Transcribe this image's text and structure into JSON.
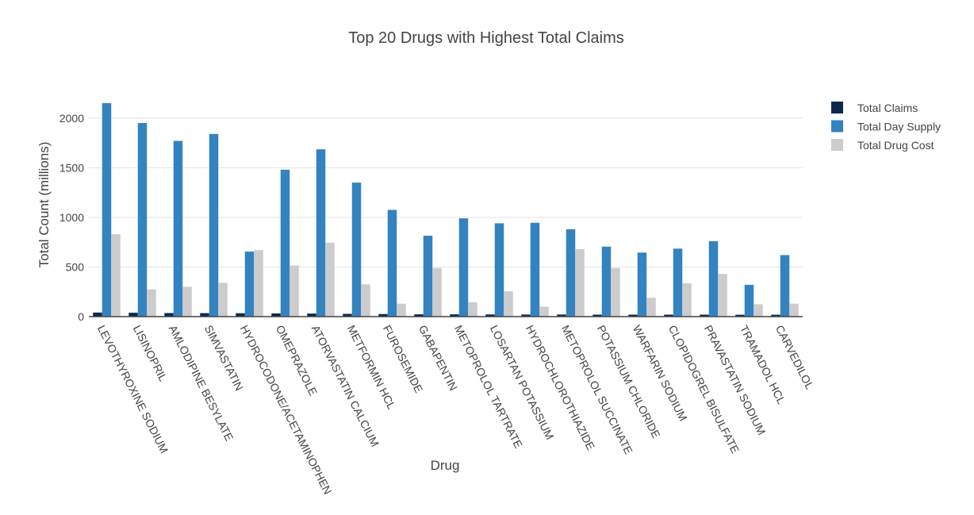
{
  "chart_data": {
    "type": "bar",
    "title": "Top 20 Drugs with Highest Total Claims",
    "xlabel": "Drug",
    "ylabel": "Total Count (millions)",
    "ylim": [
      0,
      2150
    ],
    "yticks": [
      0,
      500,
      1000,
      1500,
      2000
    ],
    "grid": true,
    "legend_position": "top-right",
    "categories": [
      "LEVOTHYROXINE SODIUM",
      "LISINOPRIL",
      "AMLODIPINE BESYLATE",
      "SIMVASTATIN",
      "HYDROCODONE/ACETAMINOPHEN",
      "OMEPRAZOLE",
      "ATORVASTATIN CALCIUM",
      "METFORMIN HCL",
      "FUROSEMIDE",
      "GABAPENTIN",
      "METOPROLOL TARTRATE",
      "LOSARTAN POTASSIUM",
      "HYDROCHLOROTHIAZIDE",
      "METOPROLOL SUCCINATE",
      "POTASSIUM CHLORIDE",
      "WARFARIN SODIUM",
      "CLOPIDOGREL BISULFATE",
      "PRAVASTATIN SODIUM",
      "TRAMADOL HCL",
      "CARVEDILOL"
    ],
    "series": [
      {
        "name": "Total Claims",
        "color": "#0d2a4d",
        "values": [
          41,
          39,
          36,
          35,
          34,
          32,
          31,
          28,
          26,
          23,
          23,
          22,
          21,
          21,
          20,
          20,
          20,
          20,
          19,
          19
        ]
      },
      {
        "name": "Total Day Supply",
        "color": "#3483c1",
        "values": [
          2150,
          1950,
          1770,
          1840,
          655,
          1480,
          1685,
          1350,
          1075,
          815,
          990,
          940,
          945,
          880,
          705,
          645,
          685,
          760,
          320,
          620
        ]
      },
      {
        "name": "Total Drug Cost",
        "color": "#cccccc",
        "values": [
          830,
          275,
          300,
          340,
          670,
          515,
          745,
          325,
          130,
          490,
          145,
          255,
          100,
          680,
          490,
          190,
          335,
          430,
          125,
          130
        ]
      }
    ]
  }
}
